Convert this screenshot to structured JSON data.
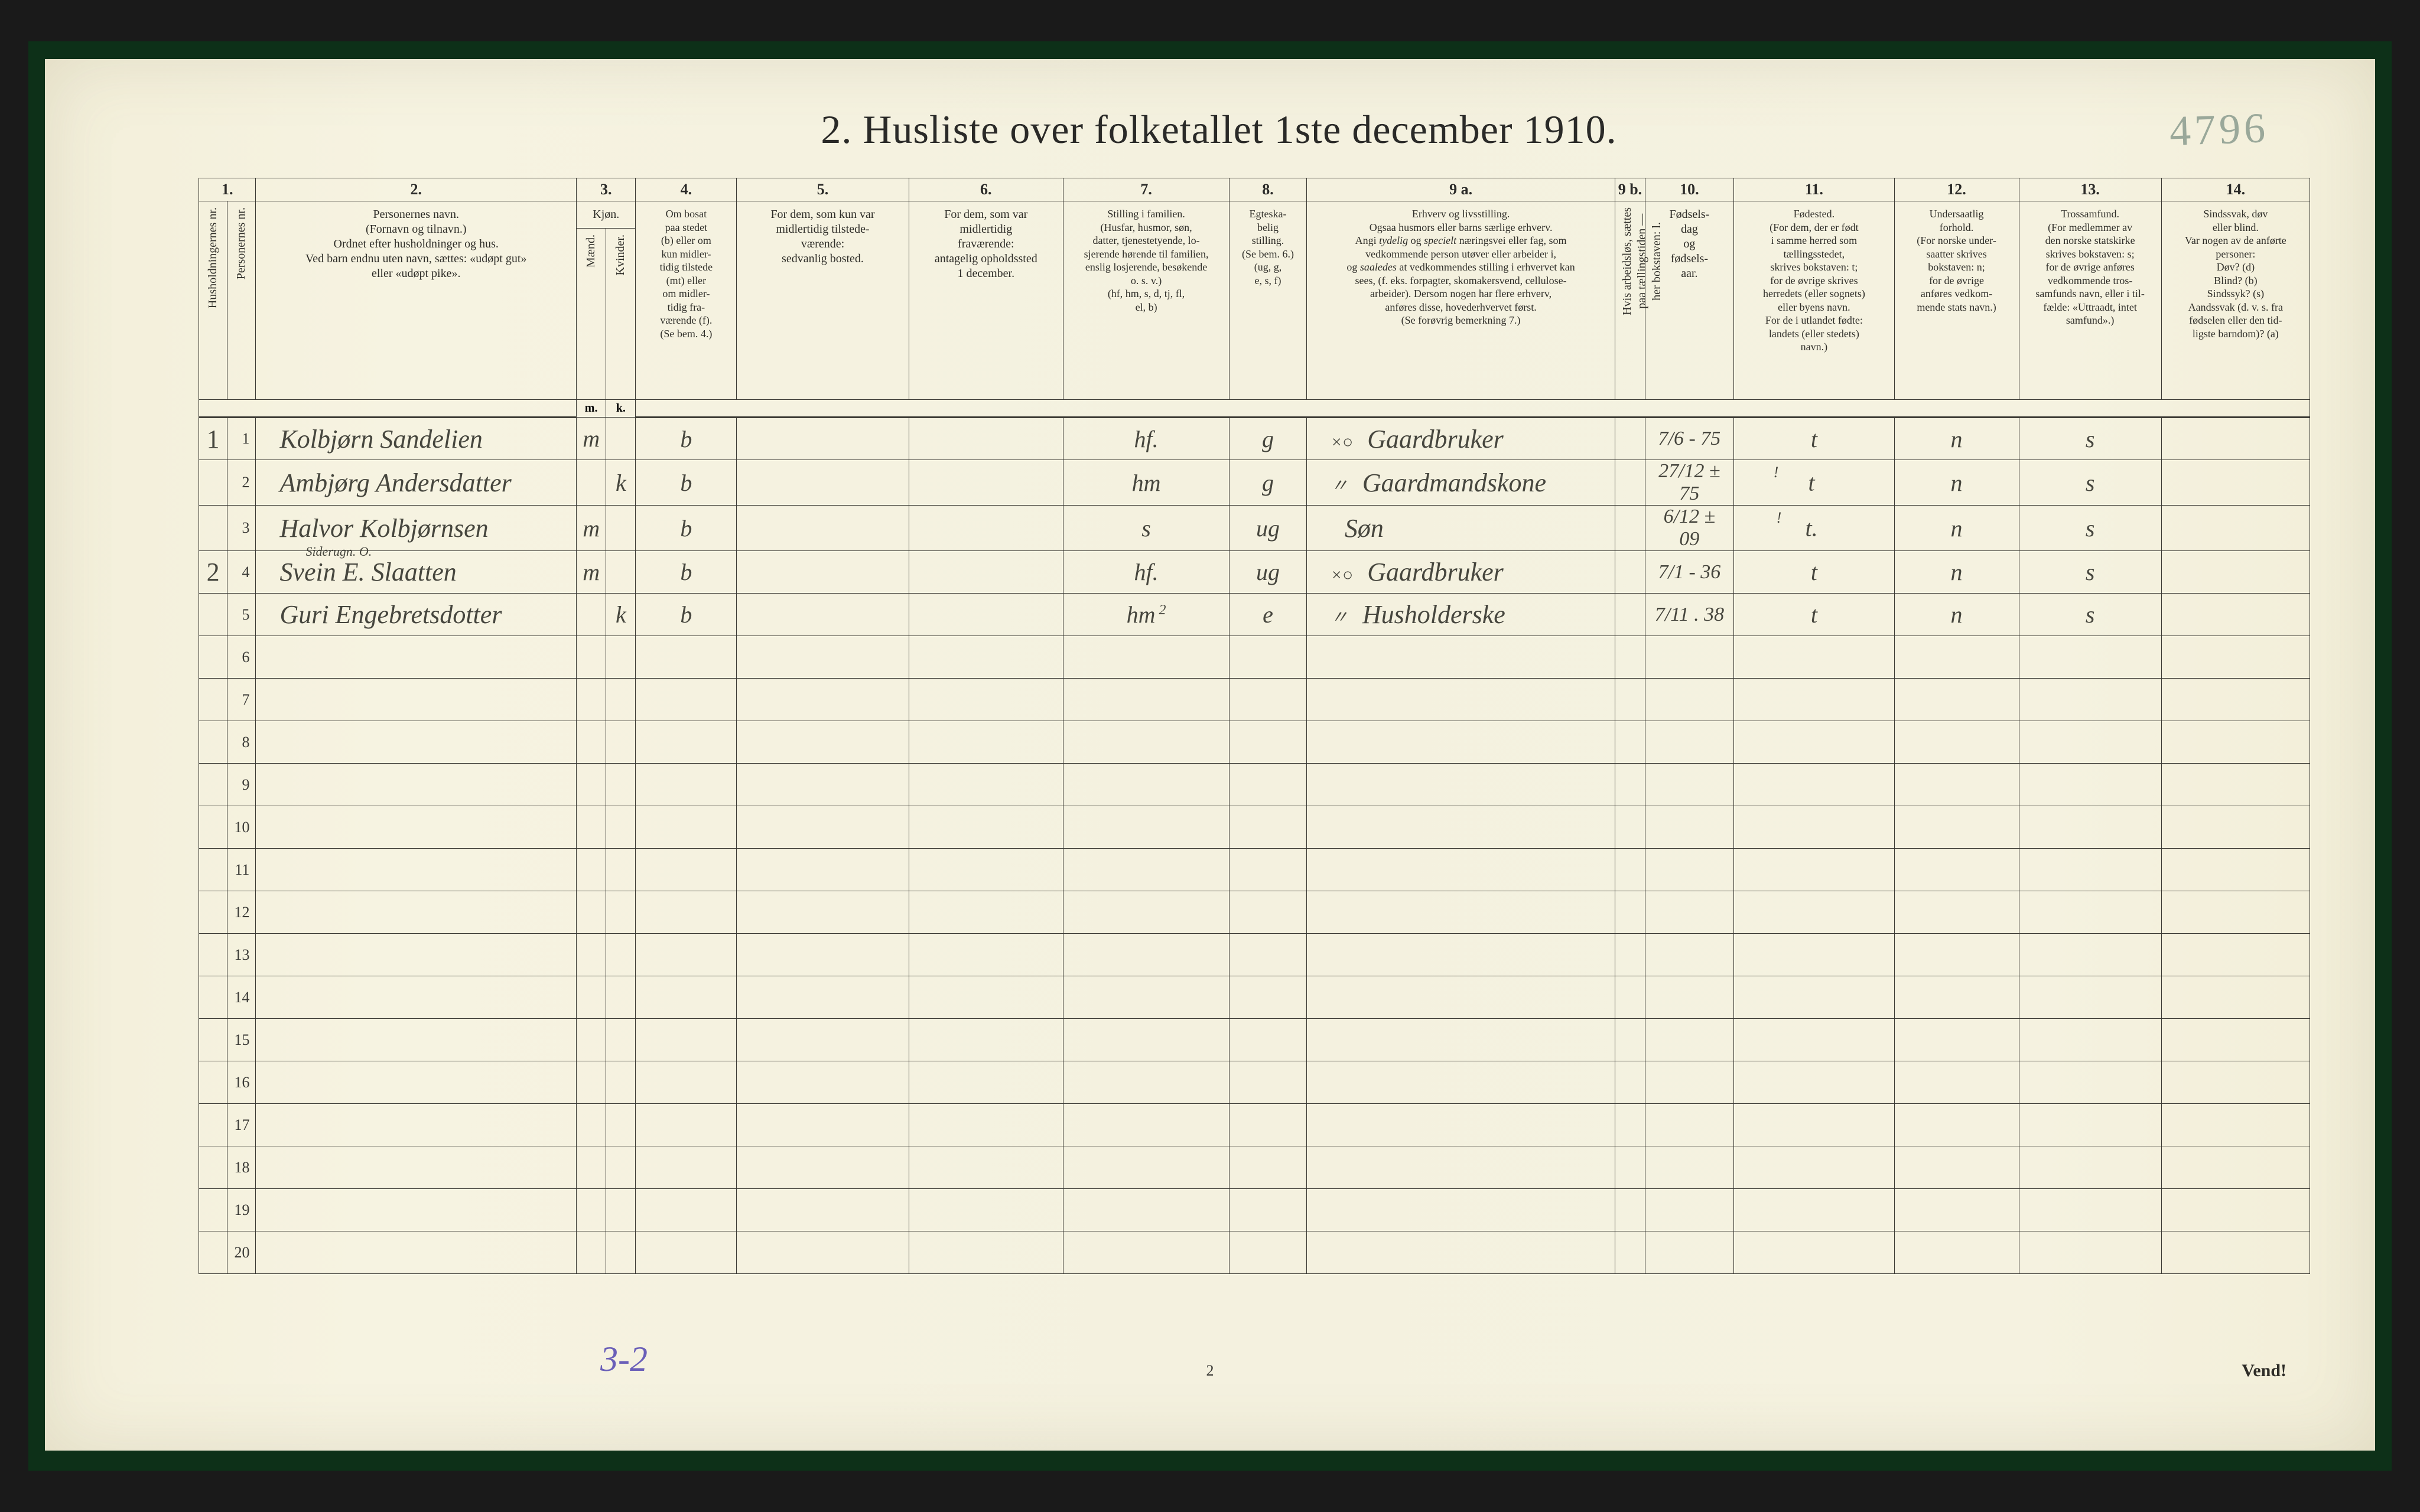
{
  "page": {
    "title": "2.  Husliste over folketallet 1ste december 1910.",
    "handwritten_pageno": "4796",
    "tally": "3-2",
    "footer_pg": "2",
    "vend": "Vend!",
    "colors": {
      "paper": "#f4f1df",
      "ink": "#2a2a28",
      "rule": "#3b3a34",
      "handwriting": "#46463e",
      "pencil_green": "#9aa89a",
      "purple": "#6a5fb8",
      "frame_green": "#0d3018",
      "outer_black": "#1a1a1a"
    }
  },
  "columns": {
    "nums": [
      "1.",
      "2.",
      "3.",
      "4.",
      "5.",
      "6.",
      "7.",
      "8.",
      "9 a.",
      "9 b.",
      "10.",
      "11.",
      "12.",
      "13.",
      "14."
    ],
    "h_household": "Husholdningernes nr.",
    "h_person": "Personernes nr.",
    "h2": "Personernes navn.<br>(Fornavn og tilnavn.)<br>Ordnet efter husholdninger og hus.<br>Ved barn endnu uten navn, sættes: «udøpt gut»<br>eller «udøpt pike».",
    "h3": "Kjøn.",
    "h3a": "Mænd.",
    "h3b": "Kvinder.",
    "h4": "Om bosat<br>paa stedet<br>(b) eller om<br>kun midler-<br>tidig tilstede<br>(mt) eller<br>om midler-<br>tidig fra-<br>værende (f).<br>(Se bem. 4.)",
    "h5": "For dem, som kun var<br>midlertidig tilstede-<br>værende:<br>sedvanlig bosted.",
    "h6": "For dem, som var<br>midlertidig<br>fraværende:<br>antagelig opholdssted<br>1 december.",
    "h7": "Stilling i familien.<br>(Husfar, husmor, søn,<br>datter, tjenestetyende, lo-<br>sjerende hørende til familien,<br>enslig losjerende, besøkende<br>o. s. v.)<br>(hf, hm, s, d, tj, fl,<br>el, b)",
    "h8": "Egteska-<br>belig<br>stilling.<br>(Se bem. 6.)<br>(ug, g,<br>e, s, f)",
    "h9a": "Erhverv og livsstilling.<br>Ogsaa husmors eller barns særlige erhverv.<br>Angi <i>tydelig</i> og <i>specielt</i> næringsvei eller fag, som<br>vedkommende person utøver eller arbeider i,<br>og <i>saaledes</i> at vedkommendes stilling i erhvervet kan<br>sees, (f. eks. forpagter, skomakersvend, cellulose-<br>arbeider). Dersom nogen har flere erhverv,<br>anføres disse, hovederhvervet først.<br>(Se forøvrig bemerkning 7.)",
    "h9b": "Hvis arbeidsløs, sættes<br>paa tællingstiden —<br>her bokstaven: l.",
    "h10": "Fødsels-<br>dag<br>og<br>fødsels-<br>aar.",
    "h11": "Fødested.<br>(For dem, der er født<br>i samme herred som<br>tællingsstedet,<br>skrives bokstaven: t;<br>for de øvrige skrives<br>herredets (eller sognets)<br>eller byens navn.<br>For de i utlandet fødte:<br>landets (eller stedets)<br>navn.)",
    "h12": "Undersaatlig<br>forhold.<br>(For norske under-<br>saatter skrives<br>bokstaven: n;<br>for de øvrige<br>anføres vedkom-<br>mende stats navn.)",
    "h13": "Trossamfund.<br>(For medlemmer av<br>den norske statskirke<br>skrives bokstaven: s;<br>for de øvrige anføres<br>vedkommende tros-<br>samfunds navn, eller i til-<br>fælde: «Uttraadt, intet<br>samfund».)",
    "h14": "Sindssvak, døv<br>eller blind.<br>Var nogen av de anførte<br>personer:<br>Døv? (d)<br>Blind? (b)<br>Sindssyk? (s)<br>Aandssvak (d. v. s. fra<br>fødselen eller den tid-<br>ligste barndom)? (a)",
    "sub3": {
      "m": "m.",
      "k": "k."
    }
  },
  "rows": [
    {
      "hh": "1",
      "pn": "1",
      "name": "Kolbjørn Sandelien",
      "sex_m": "m",
      "sex_k": "",
      "res": "b",
      "c5": "",
      "c6": "",
      "fam": "hf.",
      "mar": "g",
      "occ_pre": "×○",
      "occ": "Gaardbruker",
      "c9b": "",
      "dob": "7/6 - 75",
      "birthplace": "t",
      "nat": "n",
      "rel": "s",
      "c14": ""
    },
    {
      "hh": "",
      "pn": "2",
      "name": "Ambjørg Andersdatter",
      "sex_m": "",
      "sex_k": "k",
      "res": "b",
      "c5": "",
      "c6": "",
      "fam": "hm",
      "mar": "g",
      "occ_pre": "〃",
      "occ": "Gaardmandskone",
      "c9b": "",
      "dob": "27/12 ± 75",
      "birthplace": "t",
      "birth_sup": "!",
      "nat": "n",
      "rel": "s",
      "c14": ""
    },
    {
      "hh": "",
      "pn": "3",
      "name": "Halvor Kolbjørnsen",
      "sex_m": "m",
      "sex_k": "",
      "res": "b",
      "c5": "",
      "c6": "",
      "fam": "s",
      "mar": "ug",
      "occ_pre": "",
      "occ": "Søn",
      "c9b": "",
      "dob": "6/12 ± 09",
      "birthplace": "t.",
      "birth_sup": "!",
      "nat": "n",
      "rel": "s",
      "c14": ""
    },
    {
      "hh": "2",
      "pn": "4",
      "name": "Svein E. Slaatten",
      "name_sup": "Siderugn. O.",
      "sex_m": "m",
      "sex_k": "",
      "res": "b",
      "c5": "",
      "c6": "",
      "fam": "hf.",
      "mar": "ug",
      "occ_pre": "×○",
      "occ": "Gaardbruker",
      "c9b": "",
      "dob": "7/1 - 36",
      "birthplace": "t",
      "nat": "n",
      "rel": "s",
      "c14": ""
    },
    {
      "hh": "",
      "pn": "5",
      "name": "Guri Engebretsdotter",
      "sex_m": "",
      "sex_k": "k",
      "res": "b",
      "c5": "",
      "c6": "",
      "fam": "hm",
      "fam_sup": "2",
      "mar": "e",
      "occ_pre": "〃",
      "occ": "Husholderske",
      "c9b": "",
      "dob": "7/11 . 38",
      "birthplace": "t",
      "nat": "n",
      "rel": "s",
      "c14": ""
    }
  ],
  "empty_rows": [
    6,
    7,
    8,
    9,
    10,
    11,
    12,
    13,
    14,
    15,
    16,
    17,
    18,
    19,
    20
  ]
}
